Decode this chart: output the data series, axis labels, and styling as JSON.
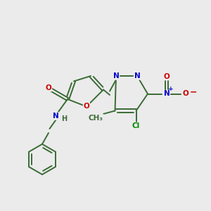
{
  "background_color": "#ebebeb",
  "bond_color": "#3a6b35",
  "atom_colors": {
    "O": "#cc0000",
    "N": "#0000cc",
    "Cl": "#008800",
    "C": "#3a6b35",
    "H": "#3a6b35"
  },
  "figsize": [
    3.0,
    3.0
  ],
  "dpi": 100
}
